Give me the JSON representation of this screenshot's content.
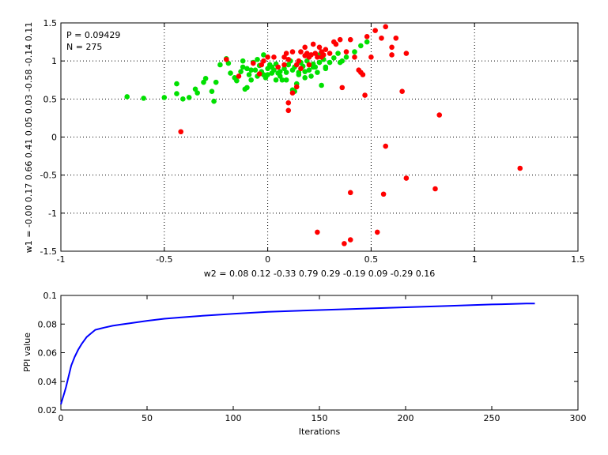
{
  "chart_data": [
    {
      "type": "scatter",
      "xlabel": "w2 = 0.08  0.12  -0.33  0.79  0.29  -0.19  0.09  -0.29  0.16",
      "ylabel": "w1 = -0.00  0.17  0.66  0.41  0.05  0.03  -0.58  -0.14  0.11",
      "annotations": [
        "P = 0.09429",
        "N = 275"
      ],
      "xlim": [
        -1,
        1.5
      ],
      "ylim": [
        -1.5,
        1.5
      ],
      "xticks": [
        -1,
        -0.5,
        0,
        0.5,
        1,
        1.5
      ],
      "xtick_labels": [
        "-1",
        "-0.5",
        "0",
        "0.5",
        "1",
        "1.5"
      ],
      "yticks": [
        -1.5,
        -1,
        -0.5,
        0,
        0.5,
        1,
        1.5
      ],
      "ytick_labels": [
        "-1.5",
        "-1",
        "-0.5",
        "0",
        "0.5",
        "1",
        "1.5"
      ],
      "grid": true,
      "series": [
        {
          "color": "#00e000",
          "x": [
            -0.68,
            -0.6,
            -0.5,
            -0.44,
            -0.41,
            -0.44,
            -0.38,
            -0.35,
            -0.34,
            -0.31,
            -0.3,
            -0.27,
            -0.26,
            -0.25,
            -0.23,
            -0.2,
            -0.19,
            -0.18,
            -0.16,
            -0.15,
            -0.13,
            -0.12,
            -0.11,
            -0.1,
            -0.09,
            -0.08,
            -0.07,
            -0.06,
            -0.05,
            -0.04,
            -0.03,
            -0.02,
            -0.01,
            0,
            0.01,
            0.02,
            0.03,
            0.04,
            0.05,
            0.06,
            0.07,
            0.08,
            0.09,
            0.1,
            0.11,
            0.12,
            0.13,
            0.14,
            0.15,
            0.16,
            0.17,
            0.18,
            0.19,
            0.2,
            0.21,
            0.22,
            0.23,
            0.24,
            0.25,
            0.26,
            0.27,
            0.28,
            0.3,
            0.32,
            0.34,
            0.36,
            0.38,
            0.42,
            0.45,
            0.48,
            -0.1,
            -0.05,
            0.02,
            0.06,
            0.09,
            0.12,
            0.15,
            0.2,
            0.25,
            0.35,
            0.28,
            0.22,
            0.18,
            -0.08,
            -0.12,
            0.04,
            0.0,
            -0.02,
            0.13,
            0.17
          ],
          "y": [
            0.53,
            0.51,
            0.52,
            0.57,
            0.5,
            0.7,
            0.52,
            0.63,
            0.58,
            0.72,
            0.77,
            0.6,
            0.47,
            0.72,
            0.95,
            1.03,
            0.97,
            0.84,
            0.78,
            0.74,
            0.86,
            0.92,
            0.63,
            0.9,
            0.82,
            0.75,
            0.98,
            0.88,
            1.02,
            0.94,
            0.86,
            0.82,
            0.78,
            0.9,
            0.95,
            0.84,
            0.88,
            0.96,
            0.84,
            0.8,
            0.75,
            0.9,
            0.85,
            0.95,
            1.0,
            0.88,
            0.92,
            0.7,
            0.82,
            0.98,
            0.93,
            0.86,
            1.0,
            0.88,
            0.8,
            0.96,
            0.92,
            0.85,
            0.98,
            0.68,
            1.02,
            0.92,
            0.98,
            1.04,
            1.1,
            1.0,
            1.05,
            1.12,
            1.2,
            1.25,
            0.65,
            0.8,
            0.92,
            0.86,
            0.75,
            0.62,
            0.85,
            1.05,
            1.08,
            0.98,
            0.9,
            0.92,
            0.78,
            0.88,
            1.0,
            0.75,
            0.82,
            1.08,
            0.6,
            0.93
          ]
        },
        {
          "color": "#ff0000",
          "x": [
            -0.42,
            -0.2,
            -0.14,
            -0.07,
            -0.04,
            -0.03,
            -0.02,
            0.0,
            0.03,
            0.05,
            0.08,
            0.09,
            0.1,
            0.12,
            0.14,
            0.15,
            0.16,
            0.18,
            0.19,
            0.2,
            0.21,
            0.22,
            0.23,
            0.24,
            0.25,
            0.26,
            0.27,
            0.28,
            0.3,
            0.32,
            0.35,
            0.38,
            0.4,
            0.42,
            0.44,
            0.46,
            0.48,
            0.52,
            0.55,
            0.57,
            0.6,
            0.62,
            0.65,
            0.67,
            0.1,
            0.1,
            0.12,
            0.14,
            0.2,
            0.36,
            0.45,
            0.47,
            0.4,
            0.57,
            0.56,
            0.67,
            0.81,
            0.83,
            1.22,
            0.24,
            0.37,
            0.4,
            0.53,
            0.18,
            0.26,
            0.33,
            0.5,
            0.6,
            0.16,
            0.08
          ],
          "y": [
            0.07,
            1.02,
            0.8,
            0.97,
            0.83,
            0.95,
            1.0,
            1.05,
            1.05,
            0.92,
            1.05,
            1.1,
            1.02,
            1.12,
            0.95,
            1.0,
            1.12,
            1.07,
            1.1,
            1.05,
            1.08,
            1.22,
            1.1,
            1.05,
            1.18,
            1.12,
            1.08,
            1.15,
            1.1,
            1.25,
            1.28,
            1.12,
            1.28,
            1.05,
            0.88,
            0.82,
            1.32,
            1.4,
            1.3,
            1.45,
            1.18,
            1.3,
            0.6,
            1.1,
            0.45,
            0.35,
            0.58,
            0.66,
            0.95,
            0.65,
            0.85,
            0.55,
            -0.73,
            -0.12,
            -0.75,
            -0.54,
            -0.68,
            0.29,
            -0.41,
            -1.25,
            -1.4,
            -1.35,
            -1.25,
            1.18,
            1.05,
            1.22,
            1.05,
            1.08,
            0.9,
            0.95
          ]
        }
      ]
    },
    {
      "type": "line",
      "xlabel": "Iterations",
      "ylabel": "PPI value",
      "xlim": [
        0,
        300
      ],
      "ylim": [
        0.02,
        0.1
      ],
      "xticks": [
        0,
        50,
        100,
        150,
        200,
        250,
        300
      ],
      "xtick_labels": [
        "0",
        "50",
        "100",
        "150",
        "200",
        "250",
        "300"
      ],
      "yticks": [
        0.02,
        0.04,
        0.06,
        0.08,
        0.1
      ],
      "ytick_labels": [
        "0.02",
        "0.04",
        "0.06",
        "0.08",
        "0.1"
      ],
      "grid": false,
      "series": [
        {
          "color": "#0000ff",
          "x": [
            0,
            1,
            2,
            3,
            4,
            5,
            6,
            8,
            10,
            12,
            15,
            18,
            20,
            25,
            30,
            35,
            40,
            50,
            60,
            70,
            80,
            100,
            120,
            150,
            175,
            200,
            225,
            250,
            260,
            270,
            275
          ],
          "y": [
            0.024,
            0.028,
            0.032,
            0.036,
            0.041,
            0.046,
            0.051,
            0.057,
            0.062,
            0.066,
            0.071,
            0.074,
            0.076,
            0.0775,
            0.0788,
            0.0797,
            0.0806,
            0.0823,
            0.0837,
            0.0847,
            0.0856,
            0.0872,
            0.0885,
            0.0898,
            0.0908,
            0.0917,
            0.0927,
            0.0937,
            0.094,
            0.0943,
            0.0944
          ]
        }
      ]
    }
  ]
}
